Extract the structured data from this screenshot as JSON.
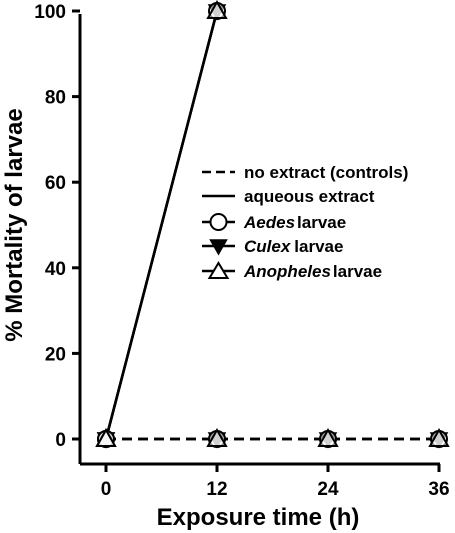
{
  "chart_data": {
    "type": "line",
    "xlabel": "Exposure time (h)",
    "ylabel": "% Mortality of larvae",
    "xlim": [
      0,
      36
    ],
    "ylim": [
      0,
      100
    ],
    "x_ticks": [
      "0",
      "12",
      "24",
      "36"
    ],
    "y_ticks": [
      "0",
      "20",
      "40",
      "60",
      "80",
      "100"
    ],
    "grid": false,
    "legend_position": "right",
    "series": [
      {
        "name": "Aedes larvae",
        "species": "Aedes",
        "suffix": "larvae",
        "treatment": "no extract (controls)",
        "marker": "circle",
        "line": "dashed",
        "x": [
          0,
          12,
          24,
          36
        ],
        "y": [
          0,
          0,
          0,
          0
        ]
      },
      {
        "name": "Culex larvae",
        "species": "Culex",
        "suffix": "larvae",
        "treatment": "no extract (controls)",
        "marker": "triangle-down",
        "line": "dashed",
        "x": [
          0,
          12,
          24,
          36
        ],
        "y": [
          0,
          0,
          0,
          0
        ]
      },
      {
        "name": "Anopheles larvae",
        "species": "Anopheles",
        "suffix": "larvae",
        "treatment": "no extract (controls)",
        "marker": "triangle-up",
        "line": "dashed",
        "x": [
          0,
          12,
          24,
          36
        ],
        "y": [
          0,
          0,
          0,
          0
        ]
      },
      {
        "name": "Aedes larvae",
        "species": "Aedes",
        "suffix": "larvae",
        "treatment": "aqueous extract",
        "marker": "circle",
        "line": "solid",
        "x": [
          0,
          12
        ],
        "y": [
          0,
          100
        ]
      },
      {
        "name": "Culex larvae",
        "species": "Culex",
        "suffix": "larvae",
        "treatment": "aqueous extract",
        "marker": "triangle-down",
        "line": "solid",
        "x": [
          0,
          12
        ],
        "y": [
          0,
          100
        ]
      },
      {
        "name": "Anopheles larvae",
        "species": "Anopheles",
        "suffix": "larvae",
        "treatment": "aqueous extract",
        "marker": "triangle-up",
        "line": "solid",
        "x": [
          0,
          12
        ],
        "y": [
          0,
          100
        ]
      }
    ],
    "legend": {
      "line_entries": [
        {
          "label": "no extract (controls)",
          "style": "dashed"
        },
        {
          "label": "aqueous extract",
          "style": "solid"
        }
      ],
      "marker_entries": [
        {
          "species": "Aedes",
          "suffix": "larvae",
          "marker": "circle"
        },
        {
          "species": "Culex",
          "suffix": "larvae",
          "marker": "triangle-down"
        },
        {
          "species": "Anopheles",
          "suffix": "larvae",
          "marker": "triangle-up"
        }
      ]
    }
  }
}
